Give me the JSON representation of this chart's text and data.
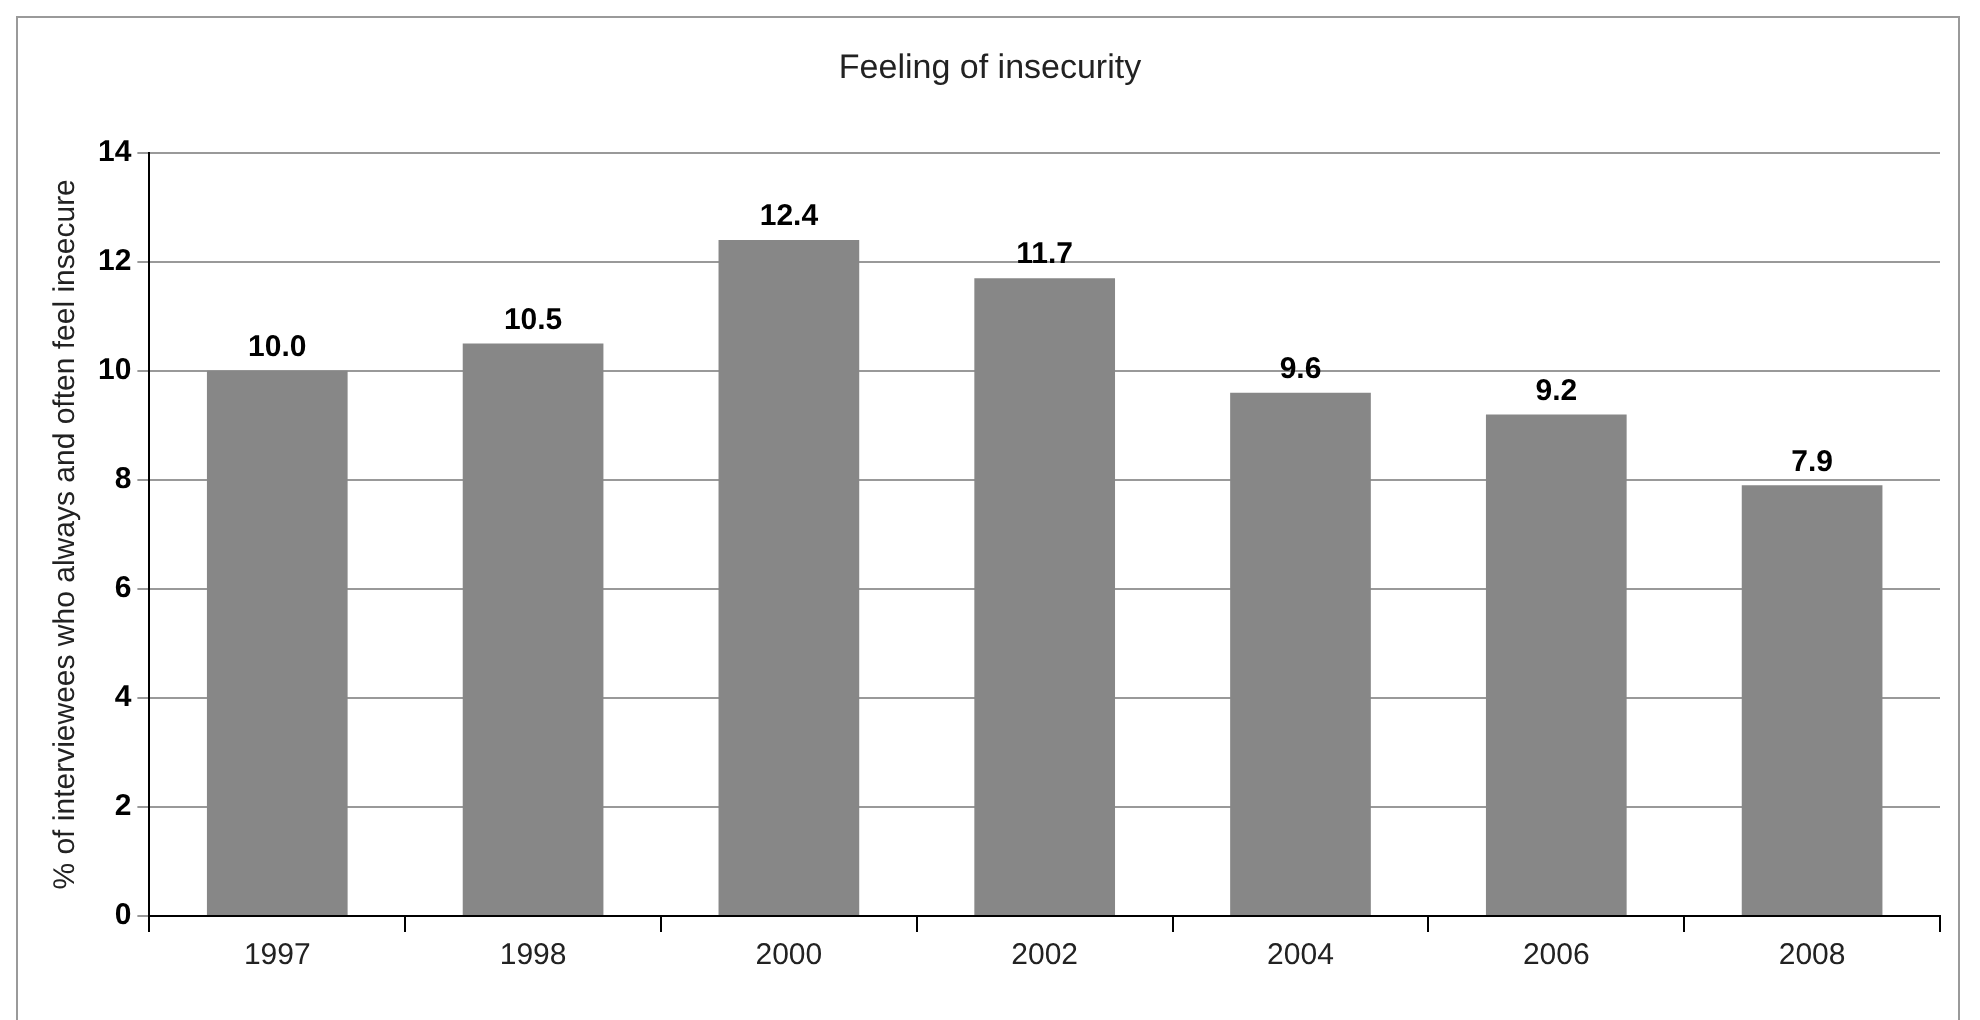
{
  "chart_data": {
    "type": "bar",
    "title": "Feeling of insecurity",
    "ylabel": "% of interviewees who always and often feel insecure",
    "categories": [
      "1997",
      "1998",
      "2000",
      "2002",
      "2004",
      "2006",
      "2008"
    ],
    "values": [
      10.0,
      10.5,
      12.4,
      11.7,
      9.6,
      9.2,
      7.9
    ],
    "value_labels": [
      "10.0",
      "10.5",
      "12.4",
      "11.7",
      "9.6",
      "9.2",
      "7.9"
    ],
    "color": "#878787",
    "ylim": [
      0,
      14
    ],
    "yticks": [
      0,
      2,
      4,
      6,
      8,
      10,
      12,
      14
    ],
    "grid": "y",
    "legend": false
  }
}
